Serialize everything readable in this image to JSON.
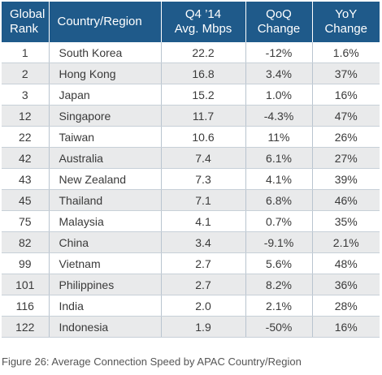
{
  "table": {
    "headers": [
      {
        "line1": "Global",
        "line2": "Rank"
      },
      {
        "line1": "Country/Region",
        "line2": ""
      },
      {
        "line1": "Q4 ’14",
        "line2": "Avg. Mbps"
      },
      {
        "line1": "QoQ",
        "line2": "Change"
      },
      {
        "line1": "YoY",
        "line2": "Change"
      }
    ],
    "rows": [
      {
        "rank": "1",
        "country": "South Korea",
        "mbps": "22.2",
        "qoq": "-12%",
        "yoy": "1.6%"
      },
      {
        "rank": "2",
        "country": "Hong Kong",
        "mbps": "16.8",
        "qoq": "3.4%",
        "yoy": "37%"
      },
      {
        "rank": "3",
        "country": "Japan",
        "mbps": "15.2",
        "qoq": "1.0%",
        "yoy": "16%"
      },
      {
        "rank": "12",
        "country": "Singapore",
        "mbps": "11.7",
        "qoq": "-4.3%",
        "yoy": "47%"
      },
      {
        "rank": "22",
        "country": "Taiwan",
        "mbps": "10.6",
        "qoq": "11%",
        "yoy": "26%"
      },
      {
        "rank": "42",
        "country": "Australia",
        "mbps": "7.4",
        "qoq": "6.1%",
        "yoy": "27%"
      },
      {
        "rank": "43",
        "country": "New Zealand",
        "mbps": "7.3",
        "qoq": "4.1%",
        "yoy": "39%"
      },
      {
        "rank": "45",
        "country": "Thailand",
        "mbps": "7.1",
        "qoq": "6.8%",
        "yoy": "46%"
      },
      {
        "rank": "75",
        "country": "Malaysia",
        "mbps": "4.1",
        "qoq": "0.7%",
        "yoy": "35%"
      },
      {
        "rank": "82",
        "country": "China",
        "mbps": "3.4",
        "qoq": "-9.1%",
        "yoy": "2.1%"
      },
      {
        "rank": "99",
        "country": "Vietnam",
        "mbps": "2.7",
        "qoq": "5.6%",
        "yoy": "48%"
      },
      {
        "rank": "101",
        "country": "Philippines",
        "mbps": "2.7",
        "qoq": "8.2%",
        "yoy": "36%"
      },
      {
        "rank": "116",
        "country": "India",
        "mbps": "2.0",
        "qoq": "2.1%",
        "yoy": "28%"
      },
      {
        "rank": "122",
        "country": "Indonesia",
        "mbps": "1.9",
        "qoq": "-50%",
        "yoy": "16%"
      }
    ]
  },
  "caption": "Figure 26: Average Connection Speed by APAC Country/Region",
  "colors": {
    "header_bg": "#1f5a8a",
    "header_text": "#ffffff",
    "stripe": "#e9eaeb"
  }
}
